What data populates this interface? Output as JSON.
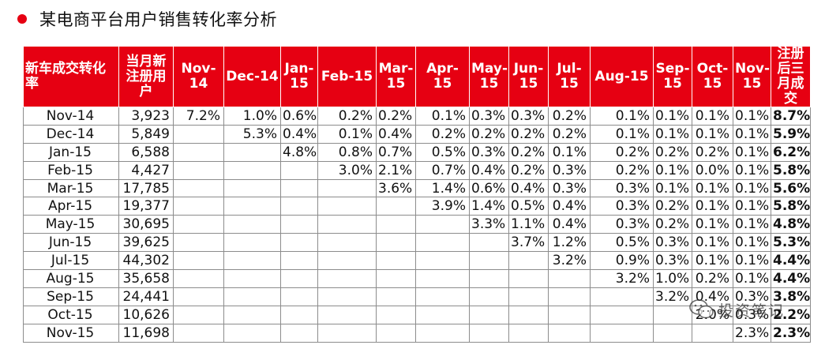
{
  "title": "某电商平台用户销售转化率分析",
  "colors": {
    "header_bg": "#e60012",
    "bullet": "#e60012"
  },
  "watermark": {
    "icon": "wechat-icon",
    "text": "投资笔记"
  },
  "table": {
    "headers": [
      "新车成交转化率",
      "当月新注册用户",
      "Nov-14",
      "Dec-14",
      "Jan-15",
      "Feb-15",
      "Mar-15",
      "Apr-15",
      "May-15",
      "Jun-15",
      "Jul-15",
      "Aug-15",
      "Sep-15",
      "Oct-15",
      "Nov-15",
      "注册后三月成交"
    ],
    "rows": [
      {
        "month": "Nov-14",
        "users": "3,923",
        "rates": [
          "7.2%",
          "1.0%",
          "0.6%",
          "0.2%",
          "0.2%",
          "0.1%",
          "0.3%",
          "0.3%",
          "0.2%",
          "0.1%",
          "0.1%",
          "0.1%",
          "0.1%"
        ],
        "total": "8.7%"
      },
      {
        "month": "Dec-14",
        "users": "5,849",
        "rates": [
          "",
          "5.3%",
          "0.4%",
          "0.1%",
          "0.4%",
          "0.2%",
          "0.2%",
          "0.2%",
          "0.2%",
          "0.1%",
          "0.1%",
          "0.1%",
          "0.1%"
        ],
        "total": "5.9%"
      },
      {
        "month": "Jan-15",
        "users": "6,588",
        "rates": [
          "",
          "",
          "4.8%",
          "0.8%",
          "0.7%",
          "0.5%",
          "0.3%",
          "0.2%",
          "0.1%",
          "0.2%",
          "0.2%",
          "0.2%",
          "0.1%"
        ],
        "total": "6.2%"
      },
      {
        "month": "Feb-15",
        "users": "4,427",
        "rates": [
          "",
          "",
          "",
          "3.0%",
          "2.1%",
          "0.7%",
          "0.4%",
          "0.2%",
          "0.3%",
          "0.2%",
          "0.1%",
          "0.0%",
          "0.1%"
        ],
        "total": "5.8%"
      },
      {
        "month": "Mar-15",
        "users": "17,785",
        "rates": [
          "",
          "",
          "",
          "",
          "3.6%",
          "1.4%",
          "0.6%",
          "0.4%",
          "0.3%",
          "0.3%",
          "0.1%",
          "0.1%",
          "0.1%"
        ],
        "total": "5.6%"
      },
      {
        "month": "Apr-15",
        "users": "19,377",
        "rates": [
          "",
          "",
          "",
          "",
          "",
          "3.9%",
          "1.4%",
          "0.5%",
          "0.4%",
          "0.3%",
          "0.2%",
          "0.1%",
          "0.1%"
        ],
        "total": "5.8%"
      },
      {
        "month": "May-15",
        "users": "30,695",
        "rates": [
          "",
          "",
          "",
          "",
          "",
          "",
          "3.3%",
          "1.1%",
          "0.4%",
          "0.3%",
          "0.2%",
          "0.1%",
          "0.1%"
        ],
        "total": "4.8%"
      },
      {
        "month": "Jun-15",
        "users": "39,625",
        "rates": [
          "",
          "",
          "",
          "",
          "",
          "",
          "",
          "3.7%",
          "1.2%",
          "0.5%",
          "0.3%",
          "0.1%",
          "0.1%"
        ],
        "total": "5.3%"
      },
      {
        "month": "Jul-15",
        "users": "44,302",
        "rates": [
          "",
          "",
          "",
          "",
          "",
          "",
          "",
          "",
          "3.2%",
          "0.9%",
          "0.3%",
          "0.1%",
          "0.1%"
        ],
        "total": "4.4%"
      },
      {
        "month": "Aug-15",
        "users": "35,658",
        "rates": [
          "",
          "",
          "",
          "",
          "",
          "",
          "",
          "",
          "",
          "3.2%",
          "1.0%",
          "0.2%",
          "0.1%"
        ],
        "total": "4.4%"
      },
      {
        "month": "Sep-15",
        "users": "24,441",
        "rates": [
          "",
          "",
          "",
          "",
          "",
          "",
          "",
          "",
          "",
          "",
          "3.2%",
          "0.4%",
          "0.3%"
        ],
        "total": "3.8%"
      },
      {
        "month": "Oct-15",
        "users": "10,626",
        "rates": [
          "",
          "",
          "",
          "",
          "",
          "",
          "",
          "",
          "",
          "",
          "",
          "2.0%",
          "0.3%"
        ],
        "total": "2.2%"
      },
      {
        "month": "Nov-15",
        "users": "11,698",
        "rates": [
          "",
          "",
          "",
          "",
          "",
          "",
          "",
          "",
          "",
          "",
          "",
          "",
          "2.3%"
        ],
        "total": "2.3%"
      }
    ]
  }
}
